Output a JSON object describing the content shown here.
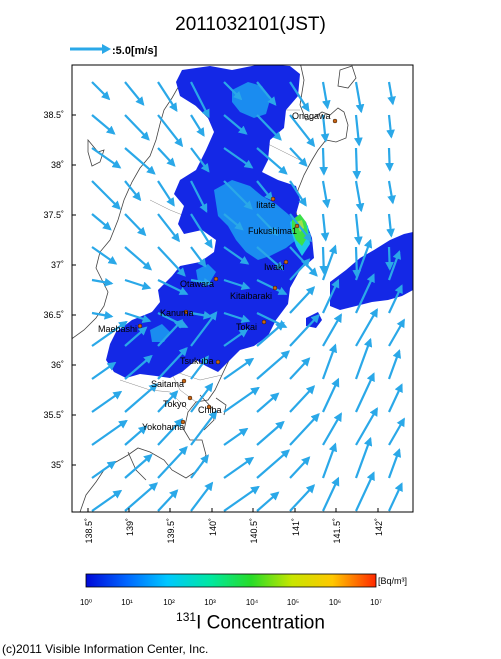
{
  "title": "2011032101(JST)",
  "wind_scale": {
    "label": ":5.0[m/s]"
  },
  "lat_labels": [
    "38.5˚",
    "38˚",
    "37.5˚",
    "37˚",
    "36.5˚",
    "36˚",
    "35.5˚",
    "35˚"
  ],
  "lon_labels": [
    "138.5˚",
    "139˚",
    "139.5˚",
    "140˚",
    "140.5˚",
    "141˚",
    "141.5˚",
    "142˚"
  ],
  "cities": [
    {
      "name": "Onagawa"
    },
    {
      "name": "Iitate"
    },
    {
      "name": "Fukushima1"
    },
    {
      "name": "Iwaki"
    },
    {
      "name": "Otawara"
    },
    {
      "name": "Kitaibaraki"
    },
    {
      "name": "Kanuma"
    },
    {
      "name": "Tokai"
    },
    {
      "name": "Maebashi"
    },
    {
      "name": "Tsukuba"
    },
    {
      "name": "Saitama"
    },
    {
      "name": "Tokyo"
    },
    {
      "name": "Chiba"
    },
    {
      "name": "Yokohama"
    }
  ],
  "colorbar": {
    "ticks": [
      "10⁰",
      "10¹",
      "10²",
      "10³",
      "10⁴",
      "10⁵",
      "10⁶",
      "10⁷"
    ],
    "unit": "[Bq/m³]",
    "title_sup": "131",
    "title_text": "I Concentration"
  },
  "copyright": "(c)2011 Visible Information Center, Inc.",
  "colors": {
    "wind_arrow": "#2aa8e8",
    "plume_low": "#1428e6",
    "plume_mid": "#1a8cf0",
    "plume_high": "#3ce04a",
    "city_dot": "#c86414"
  }
}
